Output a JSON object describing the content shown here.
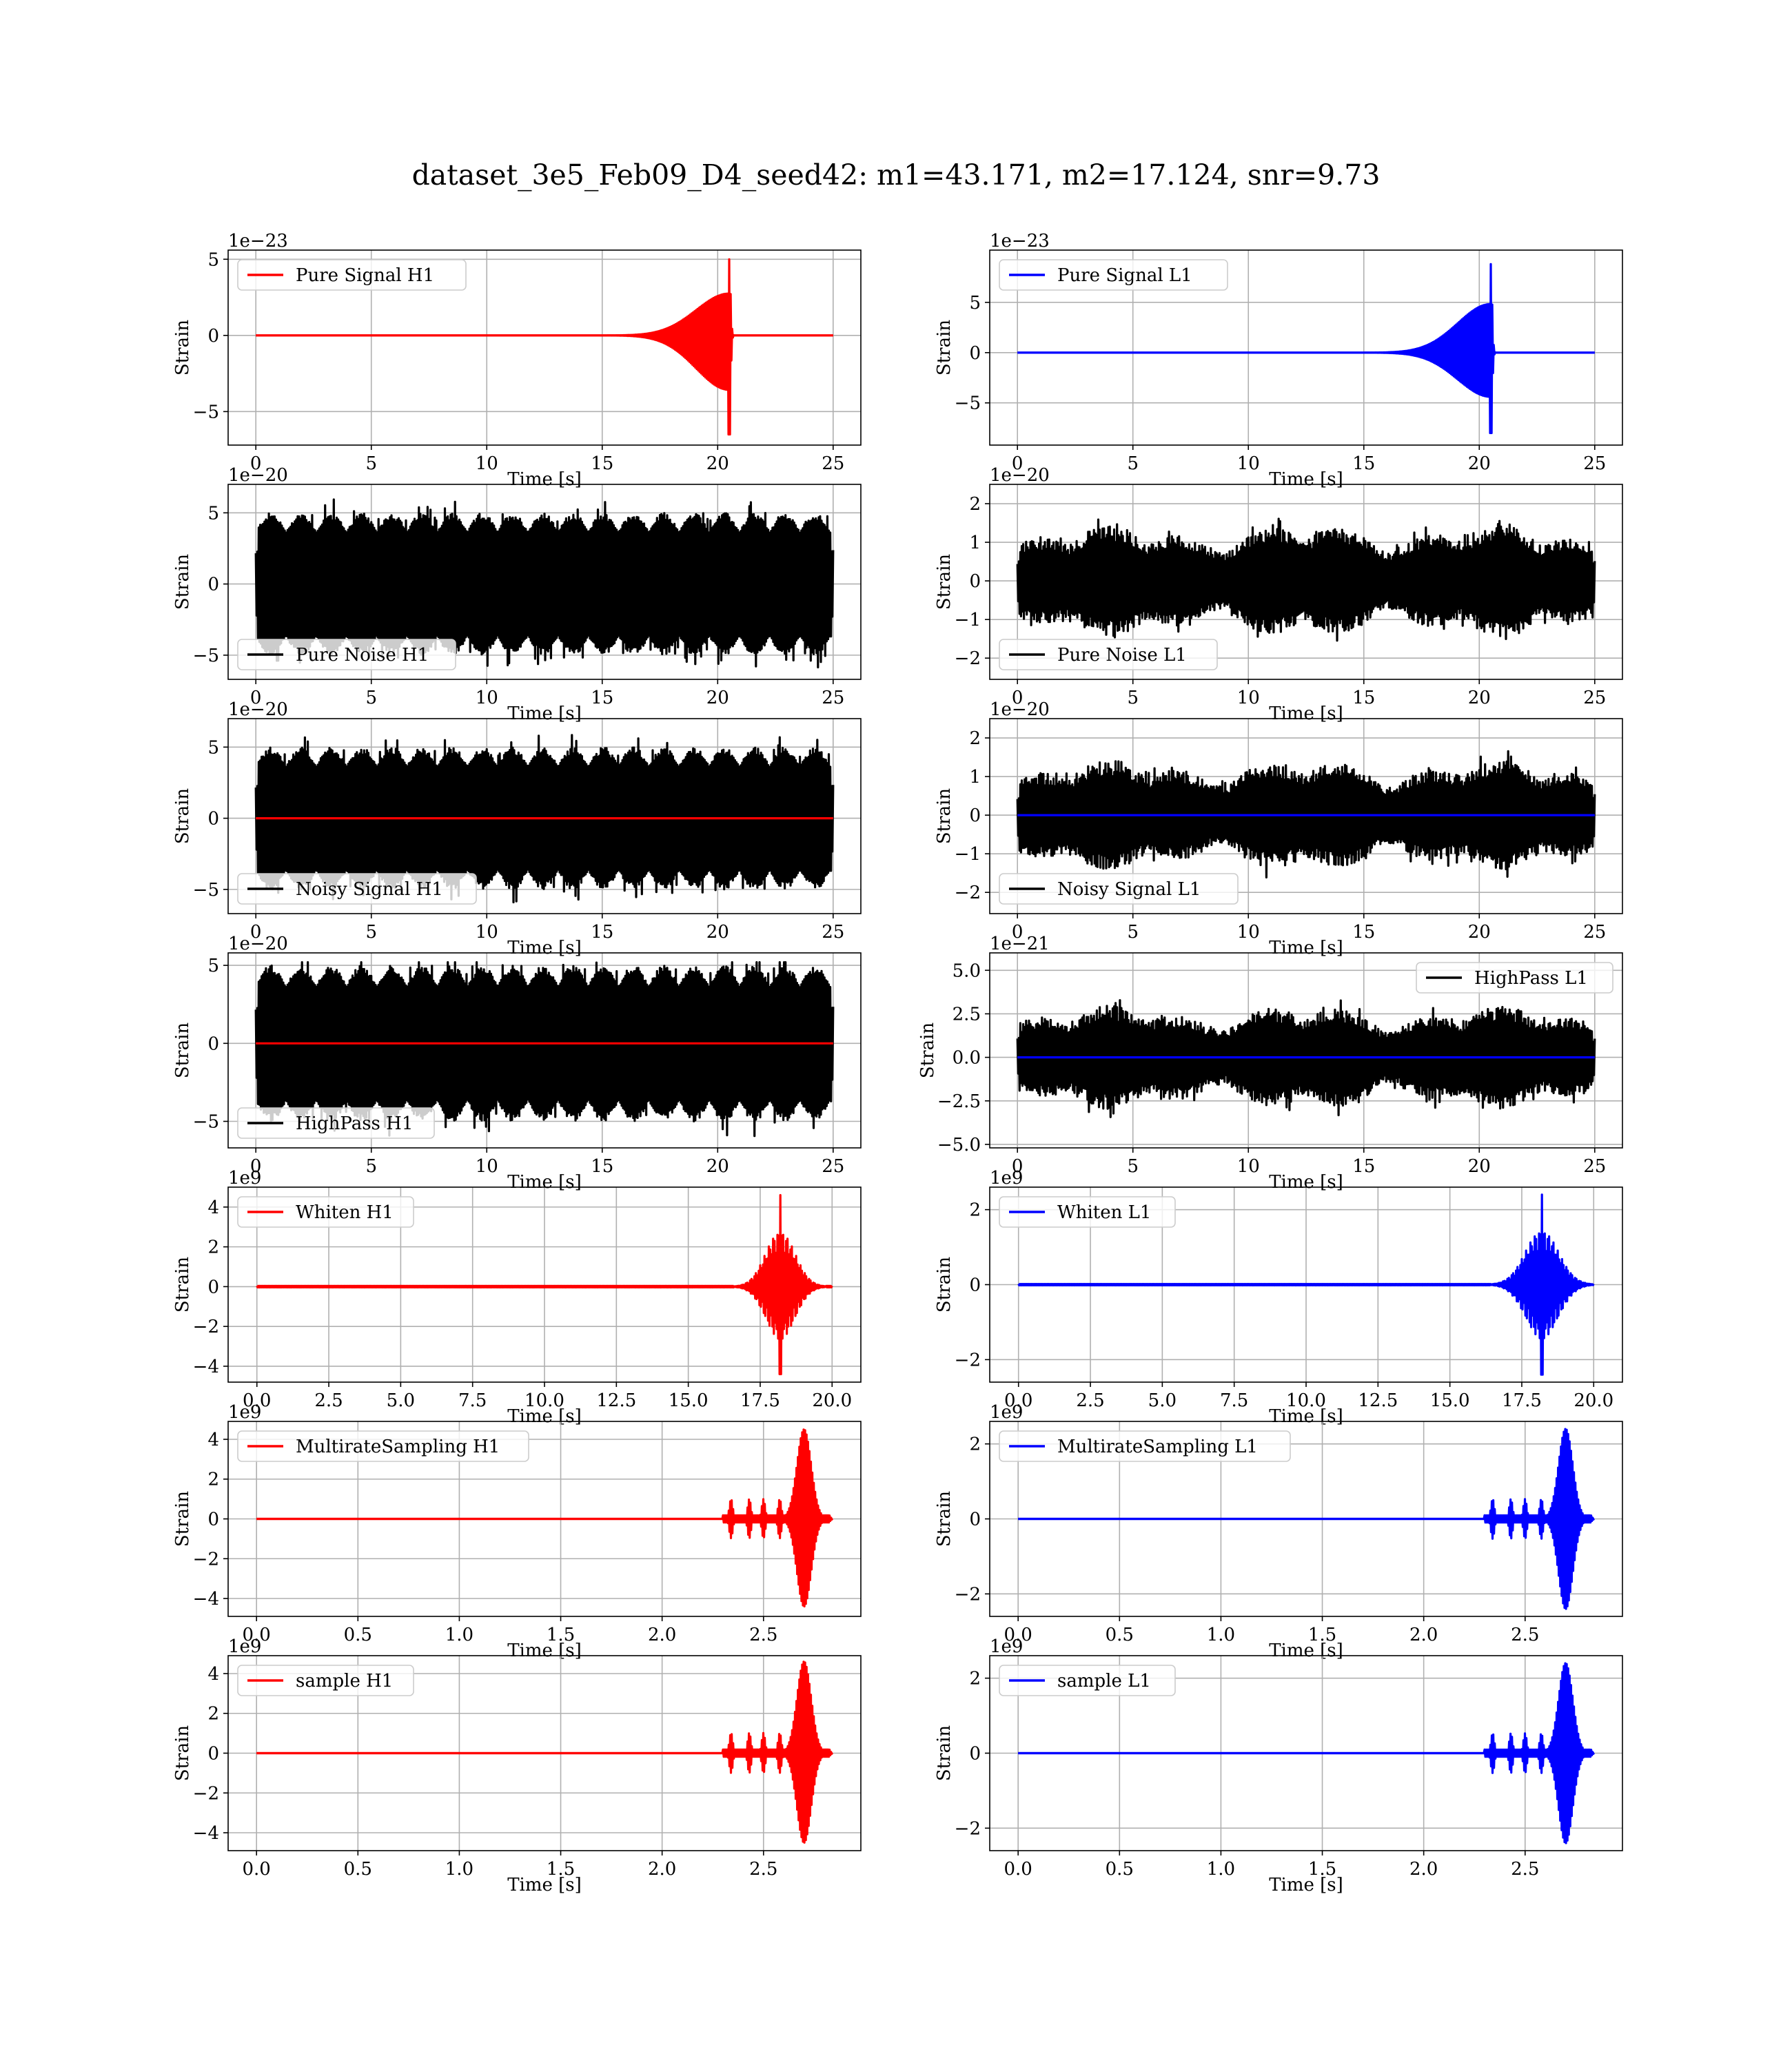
{
  "figure": {
    "title": "dataset_3e5_Feb09_D4_seed42: m1=43.171, m2=17.124, snr=9.73"
  },
  "chart_data": [
    {
      "id": "pure-signal-h1",
      "type": "line",
      "row": 0,
      "col": 0,
      "detector": "H1",
      "xlabel": "Time [s]",
      "ylabel": "Strain",
      "offset_text": "1e−23",
      "x_range": [
        0,
        25
      ],
      "xlim": [
        -1.2,
        26.2
      ],
      "ylim": [
        -7.2,
        5.6
      ],
      "xticks": [
        "0",
        "5",
        "10",
        "15",
        "20",
        "25"
      ],
      "xtick_values": [
        0,
        5,
        10,
        15,
        20,
        25
      ],
      "yticks": [
        "5",
        "0",
        "−5"
      ],
      "ytick_values": [
        5,
        0,
        -5
      ],
      "grid": true,
      "legend_loc": "top-left",
      "series": [
        {
          "name": "Pure Signal H1",
          "color": "#ff0000",
          "shape": "chirp",
          "burst_center": 20.5,
          "burst_width": 3.0,
          "peak": [
            -6.5,
            5.0
          ]
        }
      ]
    },
    {
      "id": "pure-signal-l1",
      "type": "line",
      "row": 0,
      "col": 1,
      "detector": "L1",
      "xlabel": "Time [s]",
      "ylabel": "Strain",
      "offset_text": "1e−23",
      "x_range": [
        0,
        25
      ],
      "xlim": [
        -1.2,
        26.2
      ],
      "ylim": [
        -9.2,
        10.2
      ],
      "xticks": [
        "0",
        "5",
        "10",
        "15",
        "20",
        "25"
      ],
      "xtick_values": [
        0,
        5,
        10,
        15,
        20,
        25
      ],
      "yticks": [
        "5",
        "0",
        "−5"
      ],
      "ytick_values": [
        5,
        0,
        -5
      ],
      "grid": true,
      "legend_loc": "top-left",
      "series": [
        {
          "name": "Pure Signal L1",
          "color": "#0000ff",
          "shape": "chirp",
          "burst_center": 20.5,
          "burst_width": 3.0,
          "peak": [
            -8.0,
            8.8
          ]
        }
      ]
    },
    {
      "id": "pure-noise-h1",
      "type": "line",
      "row": 1,
      "col": 0,
      "detector": "H1",
      "xlabel": "Time [s]",
      "ylabel": "Strain",
      "offset_text": "1e−20",
      "x_range": [
        0,
        25
      ],
      "xlim": [
        -1.2,
        26.2
      ],
      "ylim": [
        -6.7,
        7.0
      ],
      "xticks": [
        "0",
        "5",
        "10",
        "15",
        "20",
        "25"
      ],
      "xtick_values": [
        0,
        5,
        10,
        15,
        20,
        25
      ],
      "yticks": [
        "5",
        "0",
        "−5"
      ],
      "ytick_values": [
        5,
        0,
        -5
      ],
      "grid": true,
      "legend_loc": "bottom-left",
      "series": [
        {
          "name": "Pure Noise H1",
          "color": "#000000",
          "shape": "noise",
          "amplitude": 5.0,
          "peak": [
            -6.0,
            6.3
          ]
        }
      ]
    },
    {
      "id": "pure-noise-l1",
      "type": "line",
      "row": 1,
      "col": 1,
      "detector": "L1",
      "xlabel": "Time [s]",
      "ylabel": "Strain",
      "offset_text": "1e−20",
      "x_range": [
        0,
        25
      ],
      "xlim": [
        -1.2,
        26.2
      ],
      "ylim": [
        -2.55,
        2.5
      ],
      "xticks": [
        "0",
        "5",
        "10",
        "15",
        "20",
        "25"
      ],
      "xtick_values": [
        0,
        5,
        10,
        15,
        20,
        25
      ],
      "yticks": [
        "2",
        "1",
        "0",
        "−1",
        "−2"
      ],
      "ytick_values": [
        2,
        1,
        0,
        -1,
        -2
      ],
      "grid": true,
      "legend_loc": "bottom-left",
      "series": [
        {
          "name": "Pure Noise L1",
          "color": "#000000",
          "shape": "noise-modulated",
          "amplitude": 1.6,
          "peak": [
            -2.3,
            2.2
          ]
        }
      ]
    },
    {
      "id": "noisy-signal-h1",
      "type": "line",
      "row": 2,
      "col": 0,
      "detector": "H1",
      "xlabel": "Time [s]",
      "ylabel": "Strain",
      "offset_text": "1e−20",
      "x_range": [
        0,
        25
      ],
      "xlim": [
        -1.2,
        26.2
      ],
      "ylim": [
        -6.7,
        7.0
      ],
      "xticks": [
        "0",
        "5",
        "10",
        "15",
        "20",
        "25"
      ],
      "xtick_values": [
        0,
        5,
        10,
        15,
        20,
        25
      ],
      "yticks": [
        "5",
        "0",
        "−5"
      ],
      "ytick_values": [
        5,
        0,
        -5
      ],
      "grid": true,
      "legend_loc": "bottom-left",
      "series": [
        {
          "name": "Noisy Signal H1",
          "color": "#000000",
          "shape": "noise",
          "amplitude": 5.0,
          "peak": [
            -6.0,
            6.3
          ]
        },
        {
          "color": "#ff0000",
          "shape": "flat"
        }
      ]
    },
    {
      "id": "noisy-signal-l1",
      "type": "line",
      "row": 2,
      "col": 1,
      "detector": "L1",
      "xlabel": "Time [s]",
      "ylabel": "Strain",
      "offset_text": "1e−20",
      "x_range": [
        0,
        25
      ],
      "xlim": [
        -1.2,
        26.2
      ],
      "ylim": [
        -2.55,
        2.5
      ],
      "xticks": [
        "0",
        "5",
        "10",
        "15",
        "20",
        "25"
      ],
      "xtick_values": [
        0,
        5,
        10,
        15,
        20,
        25
      ],
      "yticks": [
        "2",
        "1",
        "0",
        "−1",
        "−2"
      ],
      "ytick_values": [
        2,
        1,
        0,
        -1,
        -2
      ],
      "grid": true,
      "legend_loc": "bottom-left",
      "series": [
        {
          "name": "Noisy Signal L1",
          "color": "#000000",
          "shape": "noise-modulated",
          "amplitude": 1.6,
          "peak": [
            -2.3,
            2.2
          ]
        },
        {
          "color": "#0000ff",
          "shape": "flat"
        }
      ]
    },
    {
      "id": "highpass-h1",
      "type": "line",
      "row": 3,
      "col": 0,
      "detector": "H1",
      "xlabel": "Time [s]",
      "ylabel": "Strain",
      "offset_text": "1e−20",
      "x_range": [
        0,
        25
      ],
      "xlim": [
        -1.2,
        26.2
      ],
      "ylim": [
        -6.7,
        5.8
      ],
      "xticks": [
        "0",
        "5",
        "10",
        "15",
        "20",
        "25"
      ],
      "xtick_values": [
        0,
        5,
        10,
        15,
        20,
        25
      ],
      "yticks": [
        "5",
        "0",
        "−5"
      ],
      "ytick_values": [
        5,
        0,
        -5
      ],
      "grid": true,
      "legend_loc": "bottom-left",
      "series": [
        {
          "name": "HighPass H1",
          "color": "#000000",
          "shape": "noise",
          "amplitude": 5.0,
          "peak": [
            -6.3,
            5.2
          ]
        },
        {
          "color": "#ff0000",
          "shape": "flat"
        }
      ]
    },
    {
      "id": "highpass-l1",
      "type": "line",
      "row": 3,
      "col": 1,
      "detector": "L1",
      "xlabel": "Time [s]",
      "ylabel": "Strain",
      "offset_text": "1e−21",
      "x_range": [
        0,
        25
      ],
      "xlim": [
        -1.2,
        26.2
      ],
      "ylim": [
        -5.2,
        6.0
      ],
      "xticks": [
        "0",
        "5",
        "10",
        "15",
        "20",
        "25"
      ],
      "xtick_values": [
        0,
        5,
        10,
        15,
        20,
        25
      ],
      "yticks": [
        "5.0",
        "2.5",
        "0.0",
        "−2.5",
        "−5.0"
      ],
      "ytick_values": [
        5,
        2.5,
        0,
        -2.5,
        -5
      ],
      "grid": true,
      "legend_loc": "top-right",
      "series": [
        {
          "name": "HighPass L1",
          "color": "#000000",
          "shape": "noise-modulated",
          "amplitude": 3.3,
          "peak": [
            -4.8,
            5.2
          ]
        },
        {
          "color": "#0000ff",
          "shape": "flat"
        }
      ]
    },
    {
      "id": "whiten-h1",
      "type": "line",
      "row": 4,
      "col": 0,
      "detector": "H1",
      "xlabel": "Time [s]",
      "ylabel": "Strain",
      "offset_text": "1e9",
      "x_range": [
        0,
        20
      ],
      "xlim": [
        -1.0,
        21.0
      ],
      "ylim": [
        -4.8,
        5.0
      ],
      "xticks": [
        "0.0",
        "2.5",
        "5.0",
        "7.5",
        "10.0",
        "12.5",
        "15.0",
        "17.5",
        "20.0"
      ],
      "xtick_values": [
        0,
        2.5,
        5,
        7.5,
        10,
        12.5,
        15,
        17.5,
        20
      ],
      "yticks": [
        "4",
        "2",
        "0",
        "−2",
        "−4"
      ],
      "ytick_values": [
        4,
        2,
        0,
        -2,
        -4
      ],
      "grid": true,
      "legend_loc": "top-left",
      "series": [
        {
          "name": "Whiten H1",
          "color": "#ff0000",
          "shape": "burst",
          "burst_center": 18.2,
          "burst_width": 1.6,
          "peak": [
            -4.4,
            4.6
          ]
        }
      ]
    },
    {
      "id": "whiten-l1",
      "type": "line",
      "row": 4,
      "col": 1,
      "detector": "L1",
      "xlabel": "Time [s]",
      "ylabel": "Strain",
      "offset_text": "1e9",
      "x_range": [
        0,
        20
      ],
      "xlim": [
        -1.0,
        21.0
      ],
      "ylim": [
        -2.6,
        2.6
      ],
      "xticks": [
        "0.0",
        "2.5",
        "5.0",
        "7.5",
        "10.0",
        "12.5",
        "15.0",
        "17.5",
        "20.0"
      ],
      "xtick_values": [
        0,
        2.5,
        5,
        7.5,
        10,
        12.5,
        15,
        17.5,
        20
      ],
      "yticks": [
        "2",
        "0",
        "−2"
      ],
      "ytick_values": [
        2,
        0,
        -2
      ],
      "grid": true,
      "legend_loc": "top-left",
      "series": [
        {
          "name": "Whiten L1",
          "color": "#0000ff",
          "shape": "burst",
          "burst_center": 18.2,
          "burst_width": 1.8,
          "peak": [
            -2.4,
            2.4
          ]
        }
      ]
    },
    {
      "id": "multirate-h1",
      "type": "line",
      "row": 5,
      "col": 0,
      "detector": "H1",
      "xlabel": "Time [s]",
      "ylabel": "Strain",
      "offset_text": "1e9",
      "x_range": [
        0,
        2.84
      ],
      "xlim": [
        -0.14,
        2.98
      ],
      "ylim": [
        -4.9,
        4.9
      ],
      "xticks": [
        "0.0",
        "0.5",
        "1.0",
        "1.5",
        "2.0",
        "2.5"
      ],
      "xtick_values": [
        0,
        0.5,
        1,
        1.5,
        2,
        2.5
      ],
      "yticks": [
        "4",
        "2",
        "0",
        "−2",
        "−4"
      ],
      "ytick_values": [
        4,
        2,
        0,
        -2,
        -4
      ],
      "grid": true,
      "legend_loc": "top-left",
      "series": [
        {
          "name": "MultirateSampling H1",
          "color": "#ff0000",
          "shape": "multirate",
          "burst_center": 2.7,
          "burst_width": 0.06,
          "peak": [
            -4.4,
            4.5
          ]
        }
      ]
    },
    {
      "id": "multirate-l1",
      "type": "line",
      "row": 5,
      "col": 1,
      "detector": "L1",
      "xlabel": "Time [s]",
      "ylabel": "Strain",
      "offset_text": "1e9",
      "x_range": [
        0,
        2.84
      ],
      "xlim": [
        -0.14,
        2.98
      ],
      "ylim": [
        -2.6,
        2.6
      ],
      "xticks": [
        "0.0",
        "0.5",
        "1.0",
        "1.5",
        "2.0",
        "2.5"
      ],
      "xtick_values": [
        0,
        0.5,
        1,
        1.5,
        2,
        2.5
      ],
      "yticks": [
        "2",
        "0",
        "−2"
      ],
      "ytick_values": [
        2,
        0,
        -2
      ],
      "grid": true,
      "legend_loc": "top-left",
      "series": [
        {
          "name": "MultirateSampling L1",
          "color": "#0000ff",
          "shape": "multirate",
          "burst_center": 2.7,
          "burst_width": 0.06,
          "peak": [
            -2.4,
            2.4
          ]
        }
      ]
    },
    {
      "id": "sample-h1",
      "type": "line",
      "row": 6,
      "col": 0,
      "detector": "H1",
      "xlabel": "Time [s]",
      "ylabel": "Strain",
      "offset_text": "1e9",
      "x_range": [
        0,
        2.84
      ],
      "xlim": [
        -0.14,
        2.98
      ],
      "ylim": [
        -4.9,
        4.9
      ],
      "xticks": [
        "0.0",
        "0.5",
        "1.0",
        "1.5",
        "2.0",
        "2.5"
      ],
      "xtick_values": [
        0,
        0.5,
        1,
        1.5,
        2,
        2.5
      ],
      "yticks": [
        "4",
        "2",
        "0",
        "−2",
        "−4"
      ],
      "ytick_values": [
        4,
        2,
        0,
        -2,
        -4
      ],
      "grid": true,
      "legend_loc": "top-left",
      "series": [
        {
          "name": "sample H1",
          "color": "#ff0000",
          "shape": "multirate",
          "burst_center": 2.7,
          "burst_width": 0.06,
          "peak": [
            -4.5,
            4.6
          ]
        }
      ]
    },
    {
      "id": "sample-l1",
      "type": "line",
      "row": 6,
      "col": 1,
      "detector": "L1",
      "xlabel": "Time [s]",
      "ylabel": "Strain",
      "offset_text": "1e9",
      "x_range": [
        0,
        2.84
      ],
      "xlim": [
        -0.14,
        2.98
      ],
      "ylim": [
        -2.6,
        2.6
      ],
      "xticks": [
        "0.0",
        "0.5",
        "1.0",
        "1.5",
        "2.0",
        "2.5"
      ],
      "xtick_values": [
        0,
        0.5,
        1,
        1.5,
        2,
        2.5
      ],
      "yticks": [
        "2",
        "0",
        "−2"
      ],
      "ytick_values": [
        2,
        0,
        -2
      ],
      "grid": true,
      "legend_loc": "top-left",
      "series": [
        {
          "name": "sample L1",
          "color": "#0000ff",
          "shape": "multirate",
          "burst_center": 2.7,
          "burst_width": 0.06,
          "peak": [
            -2.4,
            2.4
          ]
        }
      ]
    }
  ]
}
